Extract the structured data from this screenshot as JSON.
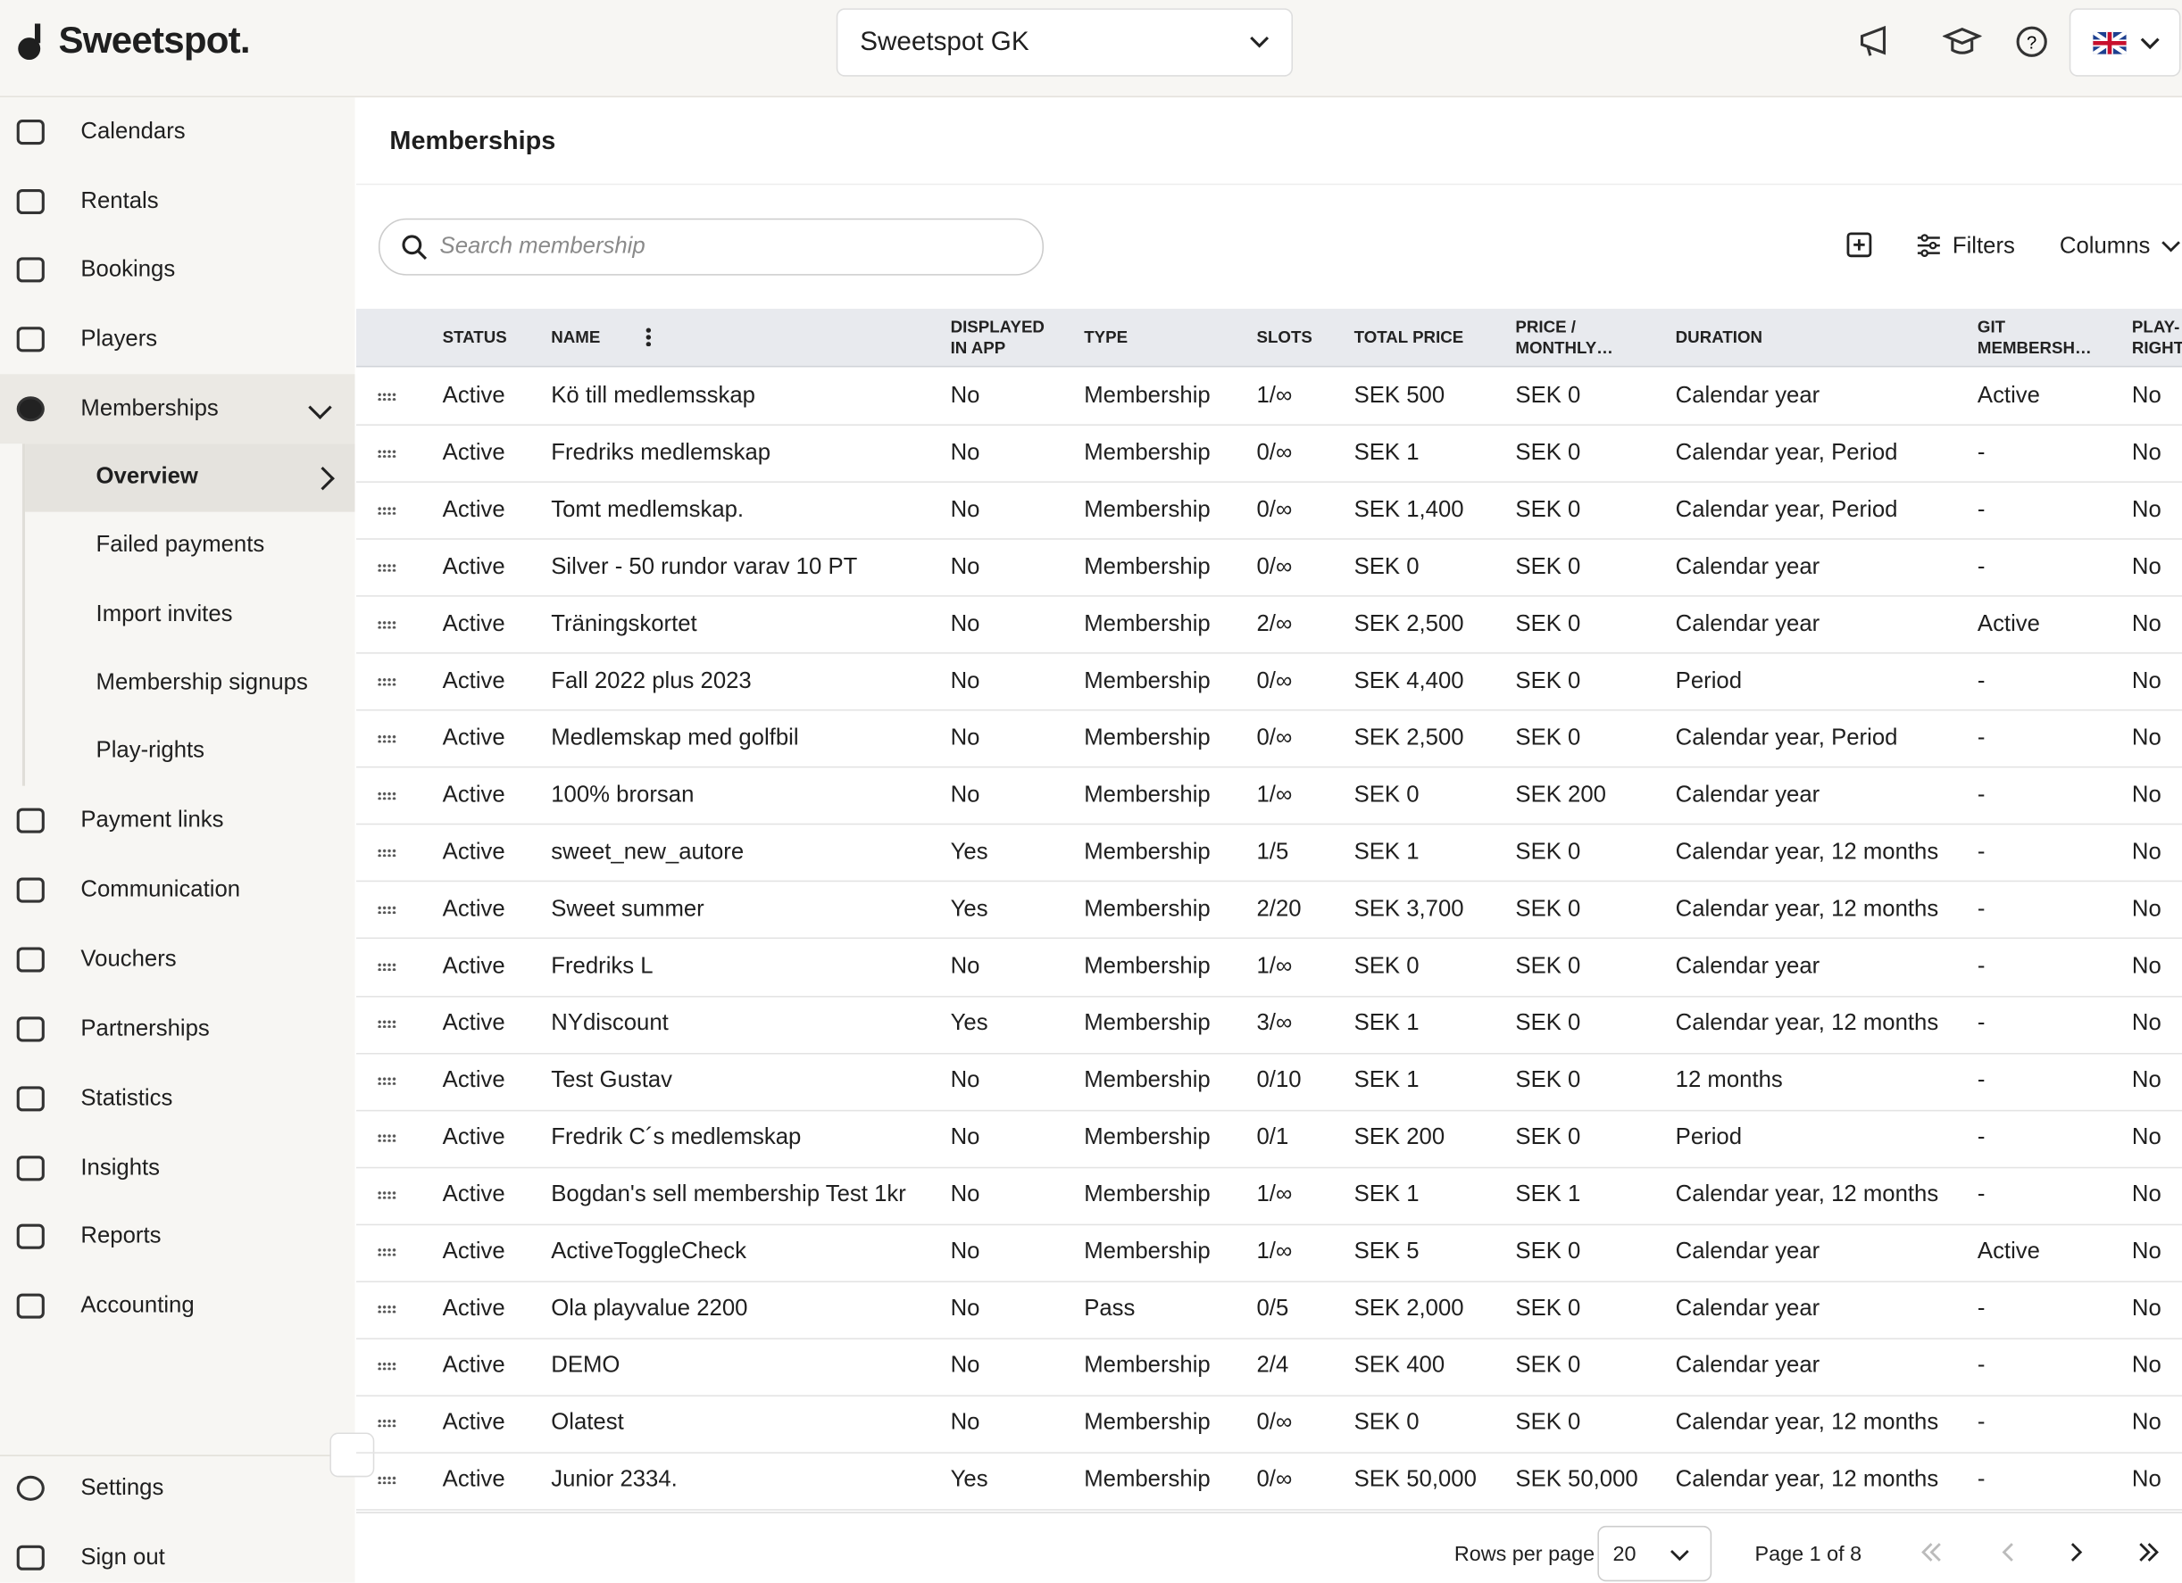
{
  "header": {
    "brand": "Sweetspot.",
    "club": "Sweetspot GK"
  },
  "sidebar": {
    "items": [
      "Calendars",
      "Rentals",
      "Bookings",
      "Players",
      "Memberships"
    ],
    "subitems": [
      "Overview",
      "Failed payments",
      "Import invites",
      "Membership signups",
      "Play-rights"
    ],
    "items2": [
      "Payment links",
      "Communication",
      "Vouchers",
      "Partnerships",
      "Statistics",
      "Insights",
      "Reports",
      "Accounting"
    ],
    "footer": [
      "Settings",
      "Sign out"
    ]
  },
  "page": {
    "title": "Memberships",
    "search_placeholder": "Search membership",
    "filters": "Filters",
    "columns": "Columns"
  },
  "table": {
    "headers": [
      "STATUS",
      "NAME",
      "DISPLAYED IN APP",
      "TYPE",
      "SLOTS",
      "TOTAL PRICE",
      "PRICE / MONTHLY…",
      "DURATION",
      "GIT MEMBERSH…",
      "PLAY-RIGHT"
    ],
    "rows": [
      [
        "Active",
        "Kö till medlemsskap",
        "No",
        "Membership",
        "1/∞",
        "SEK 500",
        "SEK 0",
        "Calendar year",
        "Active",
        "No"
      ],
      [
        "Active",
        "Fredriks medlemskap",
        "No",
        "Membership",
        "0/∞",
        "SEK 1",
        "SEK 0",
        "Calendar year, Period",
        "-",
        "No"
      ],
      [
        "Active",
        "Tomt medlemskap.",
        "No",
        "Membership",
        "0/∞",
        "SEK 1,400",
        "SEK 0",
        "Calendar year, Period",
        "-",
        "No"
      ],
      [
        "Active",
        "Silver - 50 rundor varav 10 PT",
        "No",
        "Membership",
        "0/∞",
        "SEK 0",
        "SEK 0",
        "Calendar year",
        "-",
        "No"
      ],
      [
        "Active",
        "Träningskortet",
        "No",
        "Membership",
        "2/∞",
        "SEK 2,500",
        "SEK 0",
        "Calendar year",
        "Active",
        "No"
      ],
      [
        "Active",
        "Fall 2022 plus 2023",
        "No",
        "Membership",
        "0/∞",
        "SEK 4,400",
        "SEK 0",
        "Period",
        "-",
        "No"
      ],
      [
        "Active",
        "Medlemskap med golfbil",
        "No",
        "Membership",
        "0/∞",
        "SEK 2,500",
        "SEK 0",
        "Calendar year, Period",
        "-",
        "No"
      ],
      [
        "Active",
        "100% brorsan",
        "No",
        "Membership",
        "1/∞",
        "SEK 0",
        "SEK 200",
        "Calendar year",
        "-",
        "No"
      ],
      [
        "Active",
        "sweet_new_autore",
        "Yes",
        "Membership",
        "1/5",
        "SEK 1",
        "SEK 0",
        "Calendar year, 12 months",
        "-",
        "No"
      ],
      [
        "Active",
        "Sweet summer",
        "Yes",
        "Membership",
        "2/20",
        "SEK 3,700",
        "SEK 0",
        "Calendar year, 12 months",
        "-",
        "No"
      ],
      [
        "Active",
        "Fredriks L",
        "No",
        "Membership",
        "1/∞",
        "SEK 0",
        "SEK 0",
        "Calendar year",
        "-",
        "No"
      ],
      [
        "Active",
        "NYdiscount",
        "Yes",
        "Membership",
        "3/∞",
        "SEK 1",
        "SEK 0",
        "Calendar year, 12 months",
        "-",
        "No"
      ],
      [
        "Active",
        "Test Gustav",
        "No",
        "Membership",
        "0/10",
        "SEK 1",
        "SEK 0",
        "12 months",
        "-",
        "No"
      ],
      [
        "Active",
        "Fredrik C´s medlemskap",
        "No",
        "Membership",
        "0/1",
        "SEK 200",
        "SEK 0",
        "Period",
        "-",
        "No"
      ],
      [
        "Active",
        "Bogdan's sell membership Test 1kr",
        "No",
        "Membership",
        "1/∞",
        "SEK 1",
        "SEK 1",
        "Calendar year, 12 months",
        "-",
        "No"
      ],
      [
        "Active",
        "ActiveToggleCheck",
        "No",
        "Membership",
        "1/∞",
        "SEK 5",
        "SEK 0",
        "Calendar year",
        "Active",
        "No"
      ],
      [
        "Active",
        "Ola playvalue 2200",
        "No",
        "Pass",
        "0/5",
        "SEK 2,000",
        "SEK 0",
        "Calendar year",
        "-",
        "No"
      ],
      [
        "Active",
        "DEMO",
        "No",
        "Membership",
        "2/4",
        "SEK 400",
        "SEK 0",
        "Calendar year",
        "-",
        "No"
      ],
      [
        "Active",
        "Olatest",
        "No",
        "Membership",
        "0/∞",
        "SEK 0",
        "SEK 0",
        "Calendar year, 12 months",
        "-",
        "No"
      ],
      [
        "Active",
        "Junior 2334.",
        "Yes",
        "Membership",
        "0/∞",
        "SEK 50,000",
        "SEK 50,000",
        "Calendar year, 12 months",
        "-",
        "No"
      ]
    ]
  },
  "pagination": {
    "rows_per_page_label": "Rows per page",
    "rows_per_page": 20,
    "page": "Page 1 of 8"
  }
}
